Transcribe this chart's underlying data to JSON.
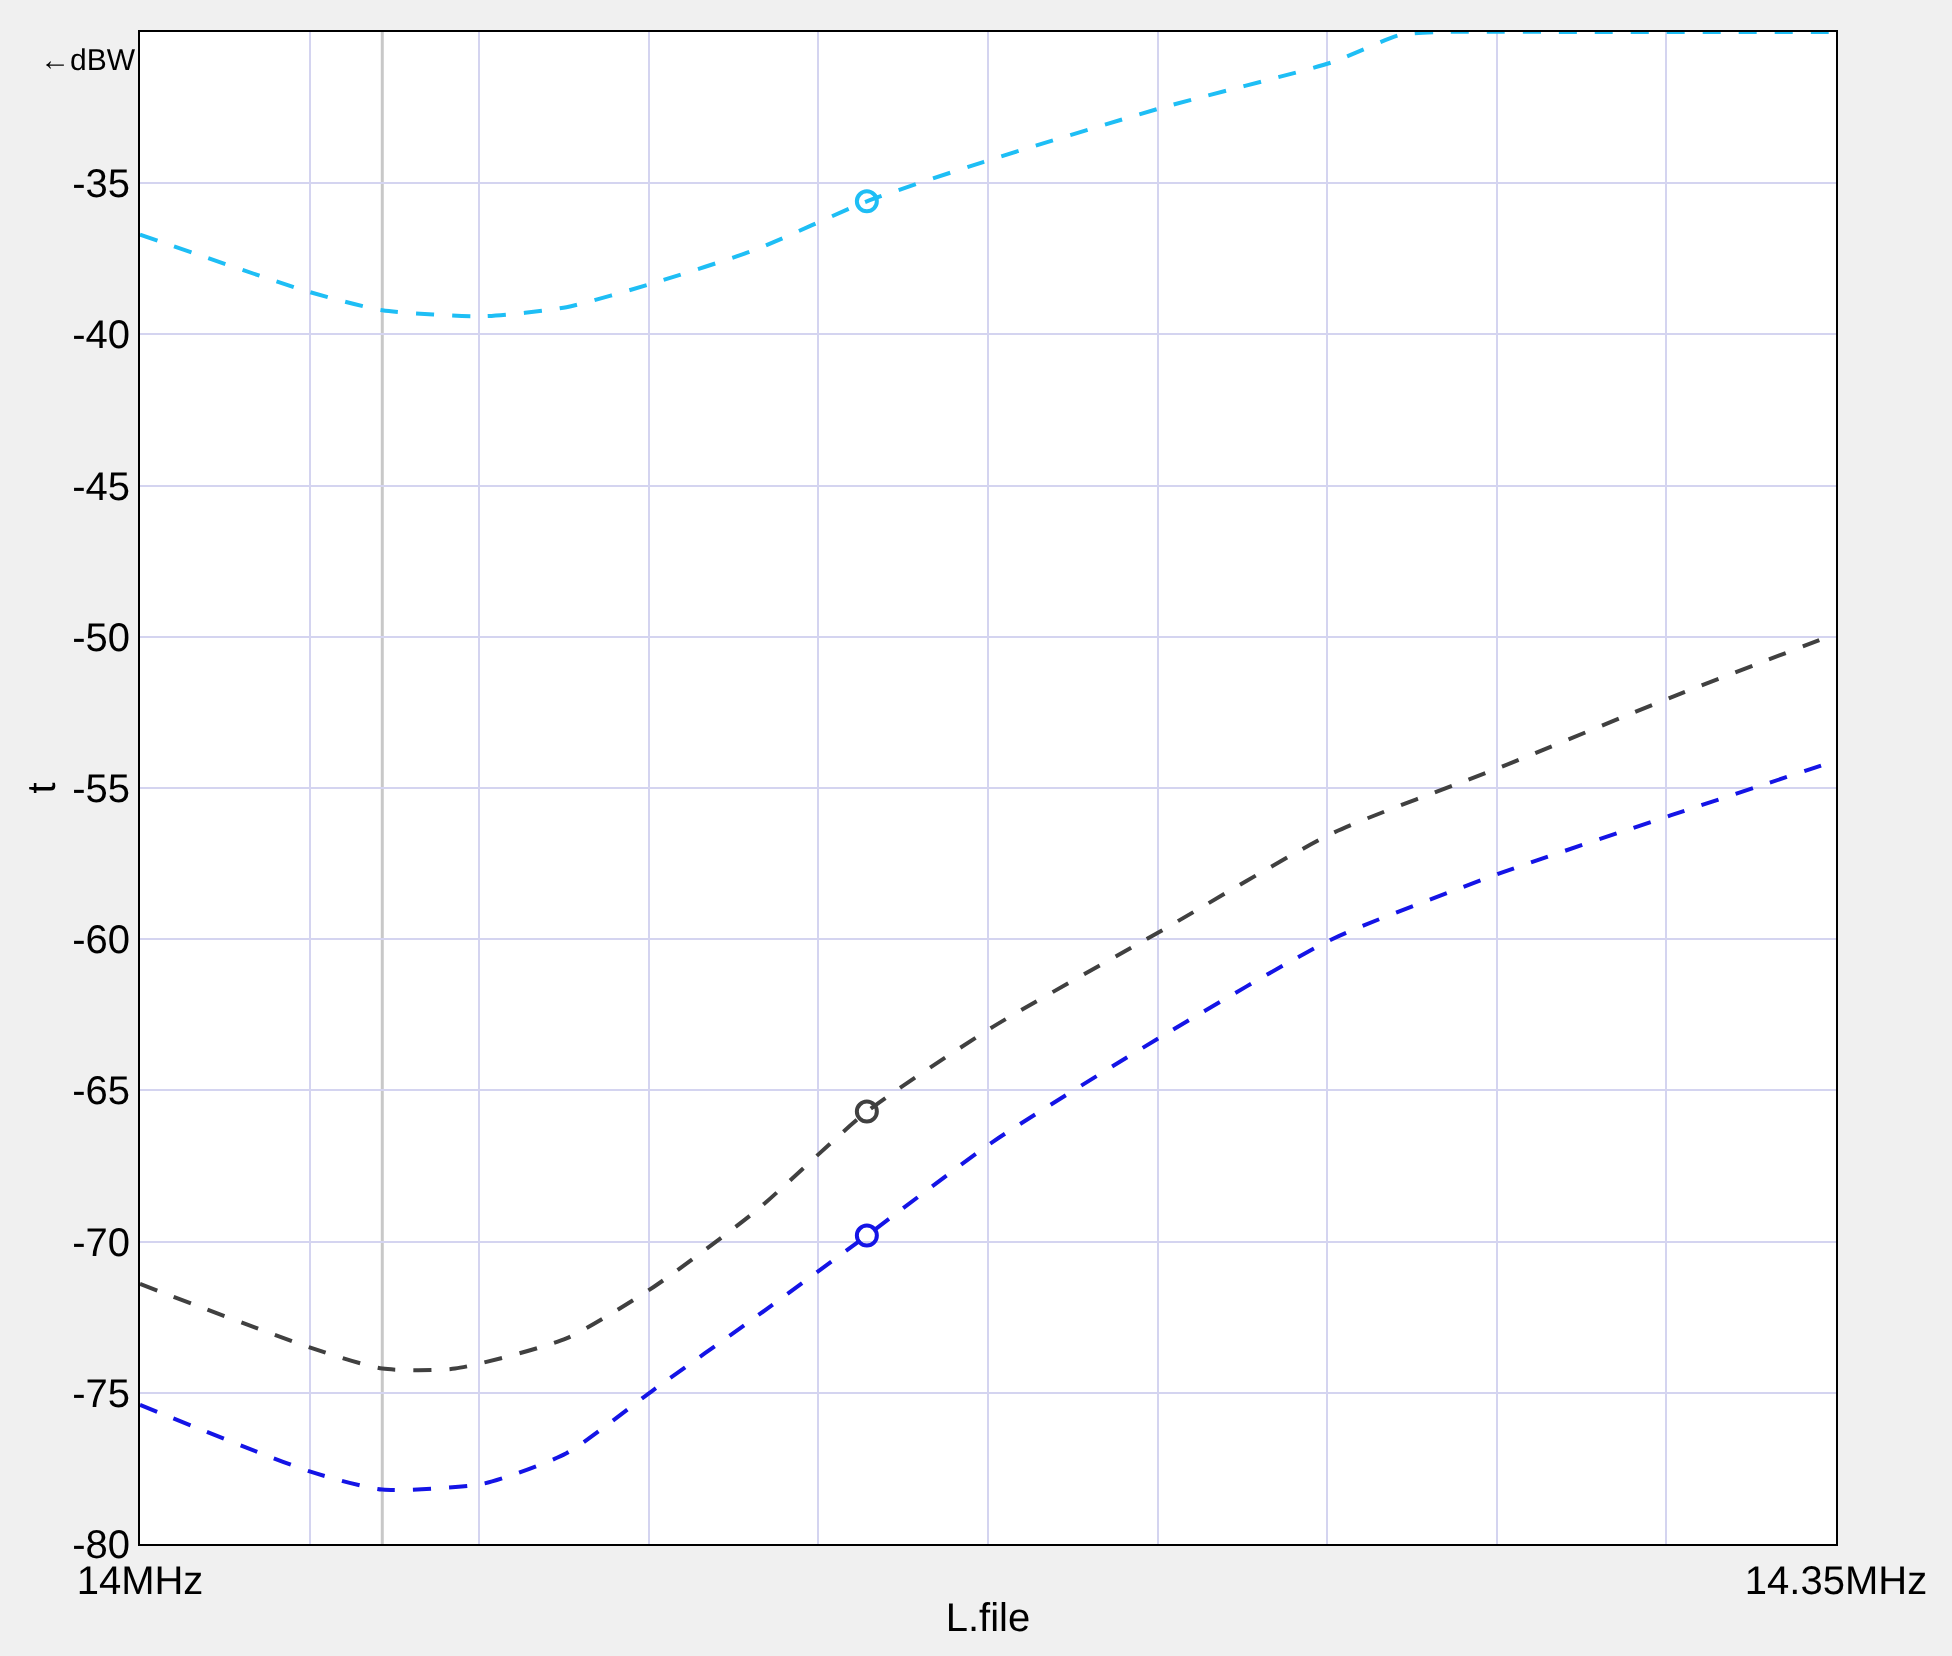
{
  "chart_data": {
    "type": "line",
    "xlabel": "L.file",
    "ylabel": "t",
    "annotations": [
      "←dBW"
    ],
    "xlim": [
      14,
      14.35
    ],
    "xticks": [
      {
        "value": 14,
        "label": "14MHz"
      },
      {
        "value": 14.035,
        "label": null
      },
      {
        "value": 14.07,
        "label": null
      },
      {
        "value": 14.105,
        "label": null
      },
      {
        "value": 14.14,
        "label": null
      },
      {
        "value": 14.175,
        "label": null
      },
      {
        "value": 14.21,
        "label": null
      },
      {
        "value": 14.245,
        "label": null
      },
      {
        "value": 14.28,
        "label": null
      },
      {
        "value": 14.315,
        "label": null
      },
      {
        "value": 14.35,
        "label": "14.35MHz"
      }
    ],
    "ylim": [
      -80,
      -30
    ],
    "yticks": [
      -80,
      -75,
      -70,
      -65,
      -60,
      -55,
      -50,
      -45,
      -40,
      -35,
      {
        "value": -30,
        "label": null
      }
    ],
    "grid": true,
    "line_style": "dashed",
    "marker": "none",
    "ref_lines": [
      {
        "axis": "x",
        "value": 14.05,
        "color": "#c8c8c8",
        "line_style": "solid"
      }
    ],
    "series": [
      {
        "color": "#1ebef5",
        "x": [
          14.0,
          14.035,
          14.05,
          14.071,
          14.088,
          14.106,
          14.127,
          14.15,
          14.174,
          14.211,
          14.246,
          14.26,
          14.268,
          14.3,
          14.35
        ],
        "values": [
          -36.7,
          -38.6,
          -39.2,
          -39.4,
          -39.1,
          -38.3,
          -37.2,
          -35.6,
          -34.3,
          -32.5,
          -31.0,
          -30.1,
          -30,
          -30,
          -30
        ]
      },
      {
        "color": "#404040",
        "x": [
          14.0,
          14.035,
          14.05,
          14.065,
          14.088,
          14.106,
          14.127,
          14.15,
          14.176,
          14.211,
          14.246,
          14.281,
          14.316,
          14.35
        ],
        "values": [
          -71.4,
          -73.5,
          -74.2,
          -74.2,
          -73.2,
          -71.5,
          -69.0,
          -65.7,
          -62.9,
          -59.7,
          -56.5,
          -54.3,
          -52.0,
          -49.9
        ]
      },
      {
        "color": "#1414e6",
        "x": [
          14.0,
          14.035,
          14.05,
          14.071,
          14.088,
          14.106,
          14.127,
          14.15,
          14.176,
          14.211,
          14.246,
          14.281,
          14.316,
          14.35
        ],
        "values": [
          -75.4,
          -77.6,
          -78.2,
          -78.0,
          -77.0,
          -74.9,
          -72.5,
          -69.8,
          -66.7,
          -63.2,
          -60.0,
          -57.8,
          -55.9,
          -54.1
        ]
      },
      {
        "type": "scatter",
        "marker": "circle",
        "x": [
          14.15,
          14.15,
          14.15
        ],
        "values": [
          -35.6,
          -65.7,
          -69.8
        ],
        "colors": [
          "#1ebef5",
          "#404040",
          "#1414e6"
        ]
      }
    ]
  }
}
